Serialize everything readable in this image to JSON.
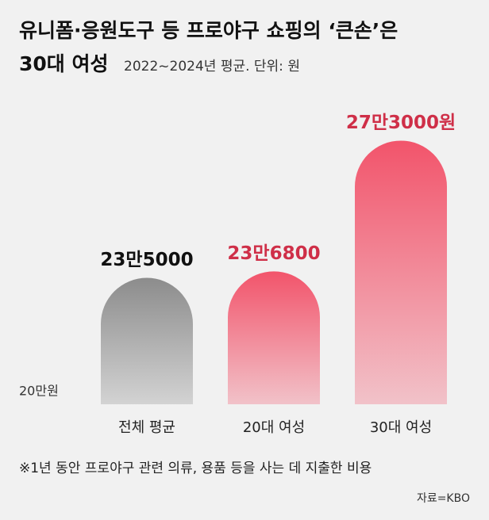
{
  "chart_data": {
    "type": "bar",
    "title": [
      "유니폼·응원도구 등 프로야구 쇼핑의 ‘큰손’은",
      "30대 여성"
    ],
    "subtitle": "2022~2024년 평균. 단위: 원",
    "categories": [
      "전체 평균",
      "20대 여성",
      "30대 여성"
    ],
    "values": [
      235000,
      236800,
      273000
    ],
    "value_labels": [
      "23만5000",
      "23만6800",
      "27만3000원"
    ],
    "colors": [
      "#8c8c8c",
      "#f2546b",
      "#f2546b"
    ],
    "label_colors": [
      "#111111",
      "#cf2f48",
      "#cf2f48"
    ],
    "ylim": [
      200000,
      290000
    ],
    "yticks": [
      {
        "value": 200000,
        "label": "20만원"
      }
    ],
    "footnote": "※1년 동안 프로야구 관련 의류, 용품 등을 사는 데 지출한 비용",
    "source": "자료=KBO"
  }
}
